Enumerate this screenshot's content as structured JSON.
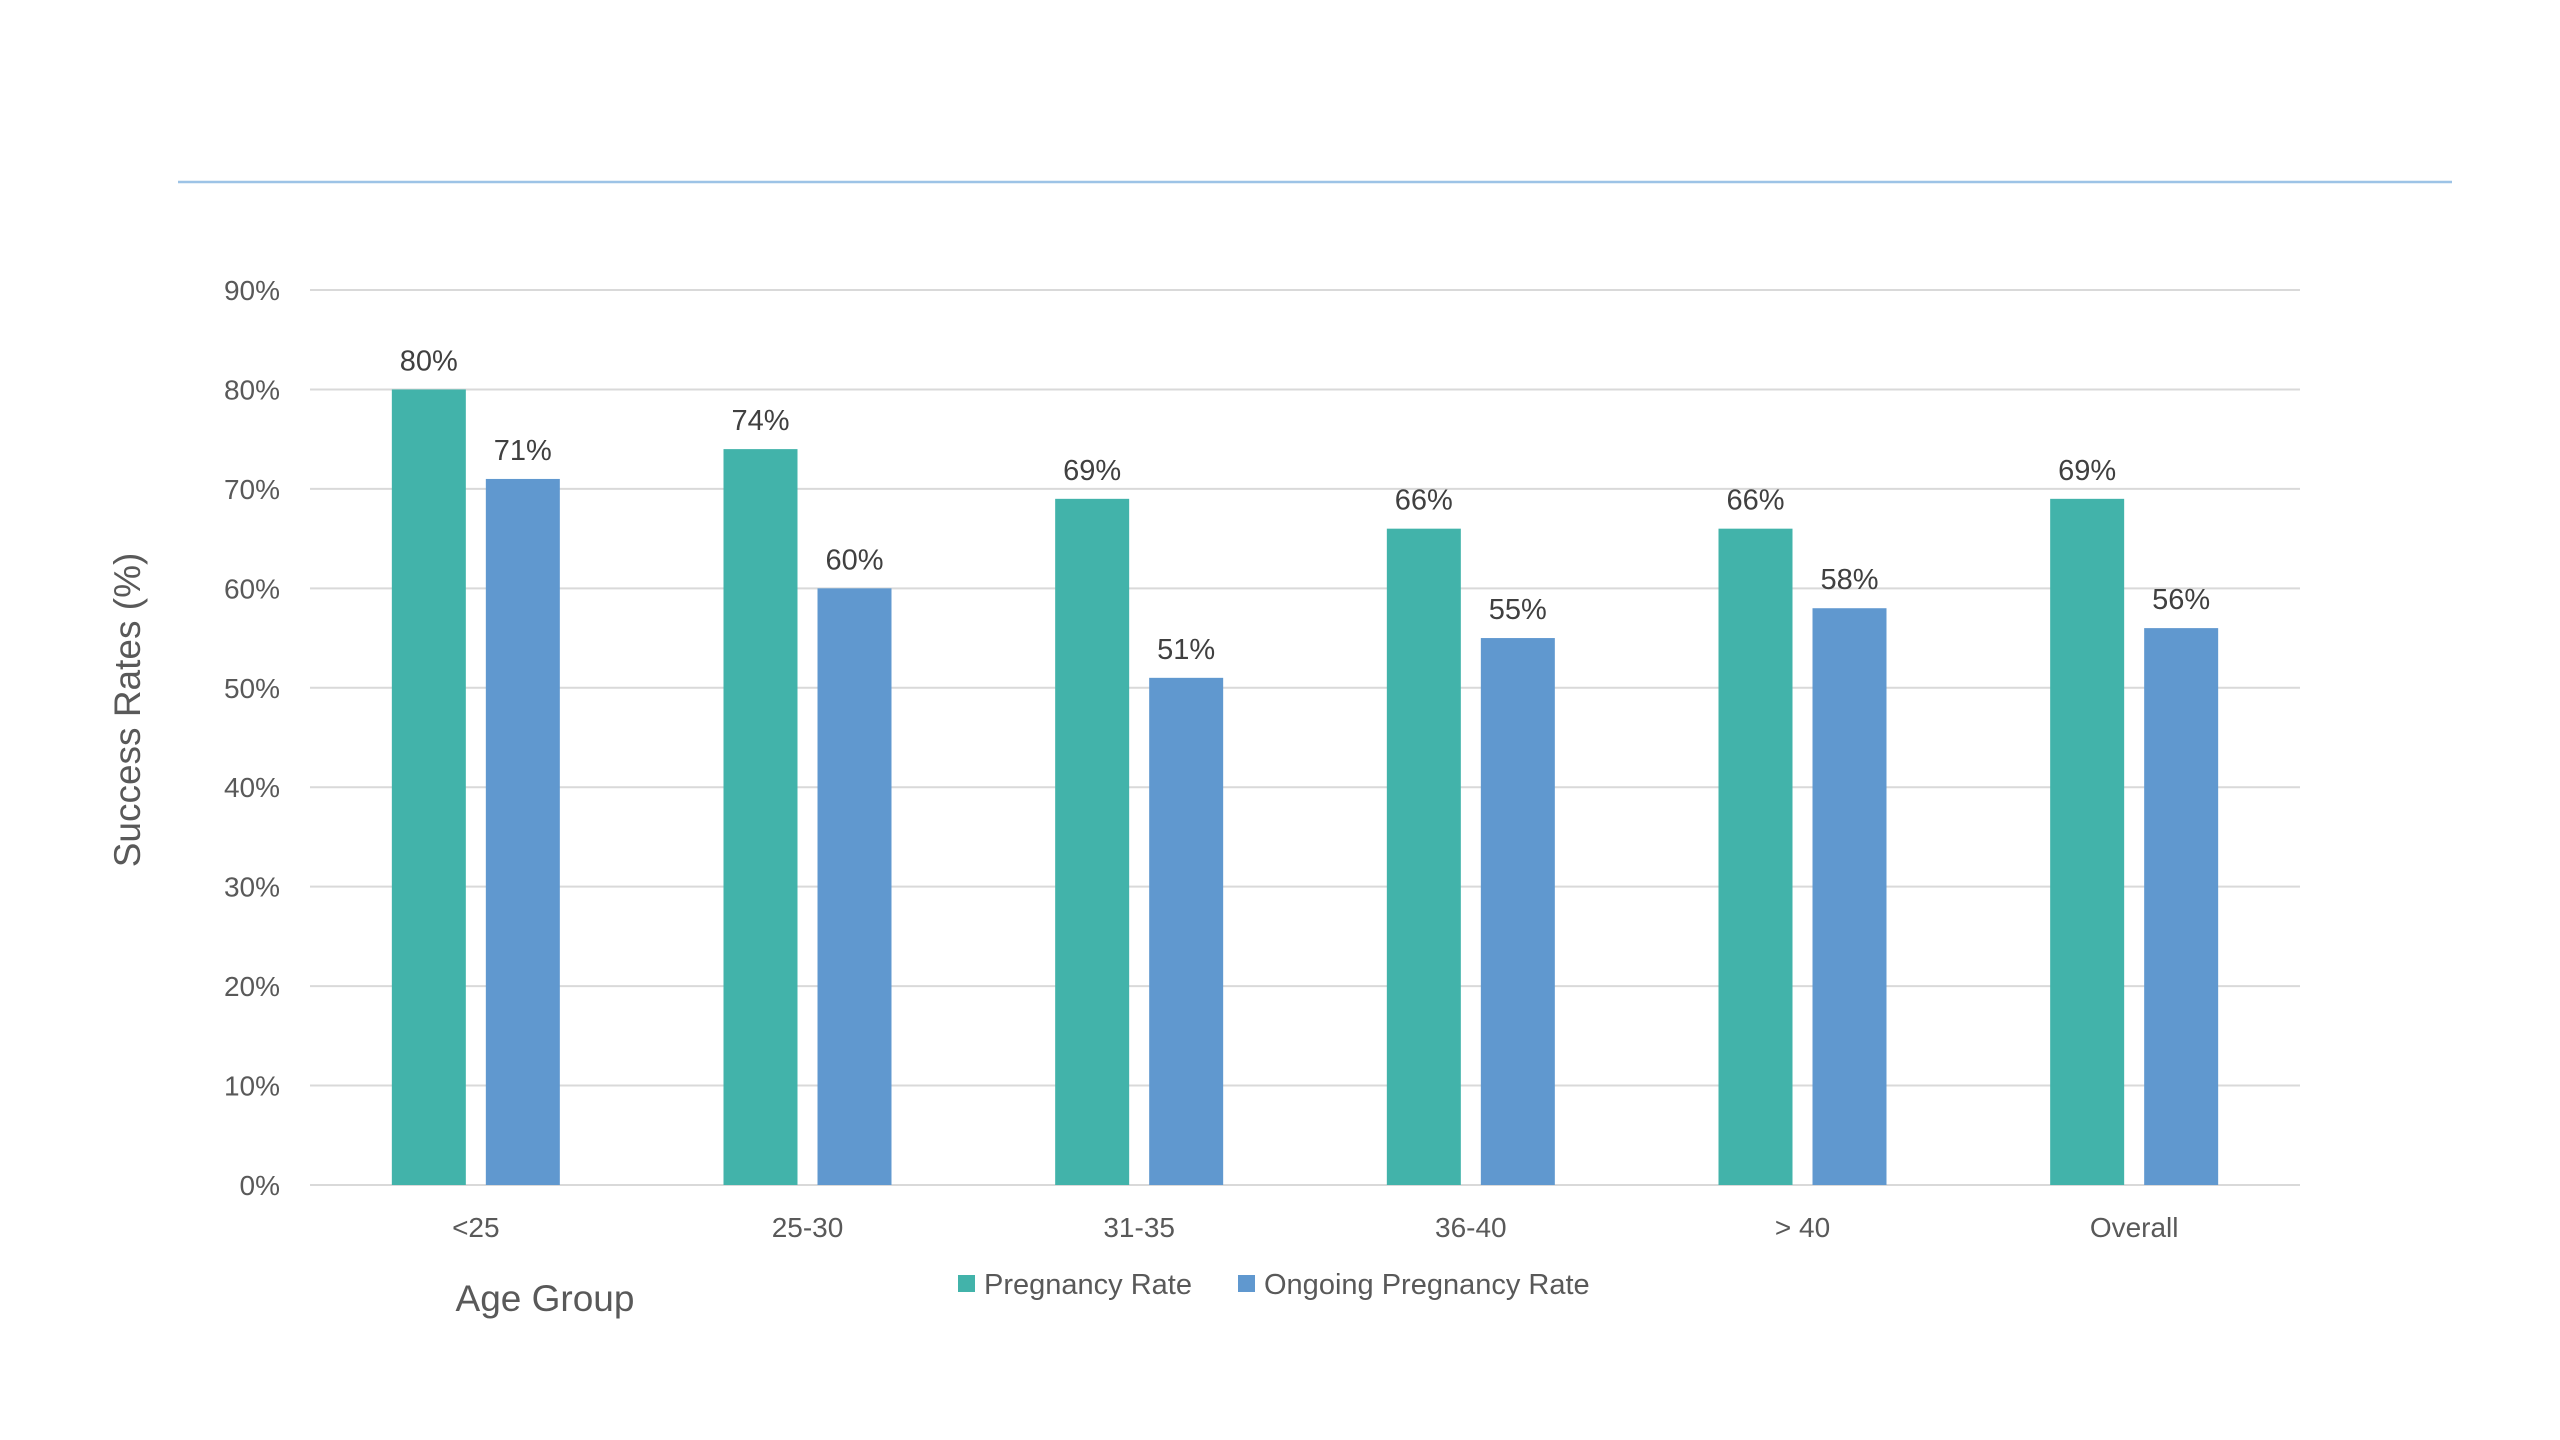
{
  "chart_data": {
    "type": "bar",
    "categories": [
      "<25",
      "25-30",
      "31-35",
      "36-40",
      "> 40",
      "Overall"
    ],
    "series": [
      {
        "name": "Pregnancy Rate",
        "values": [
          80,
          74,
          69,
          66,
          66,
          69
        ],
        "color": "#42B3AA"
      },
      {
        "name": "Ongoing Pregnancy Rate",
        "values": [
          71,
          60,
          51,
          55,
          58,
          56
        ],
        "color": "#6098CF"
      }
    ],
    "title": "",
    "xlabel": "Age Group",
    "ylabel": "Success Rates (%)",
    "ylim": [
      0,
      90
    ],
    "y_tick_step": 10,
    "value_suffix": "%",
    "grid": true,
    "legend_position": "bottom",
    "colors": {
      "grid": "#D9D9D9",
      "header_rule": "#9DC3E6",
      "text": "#595959"
    }
  }
}
